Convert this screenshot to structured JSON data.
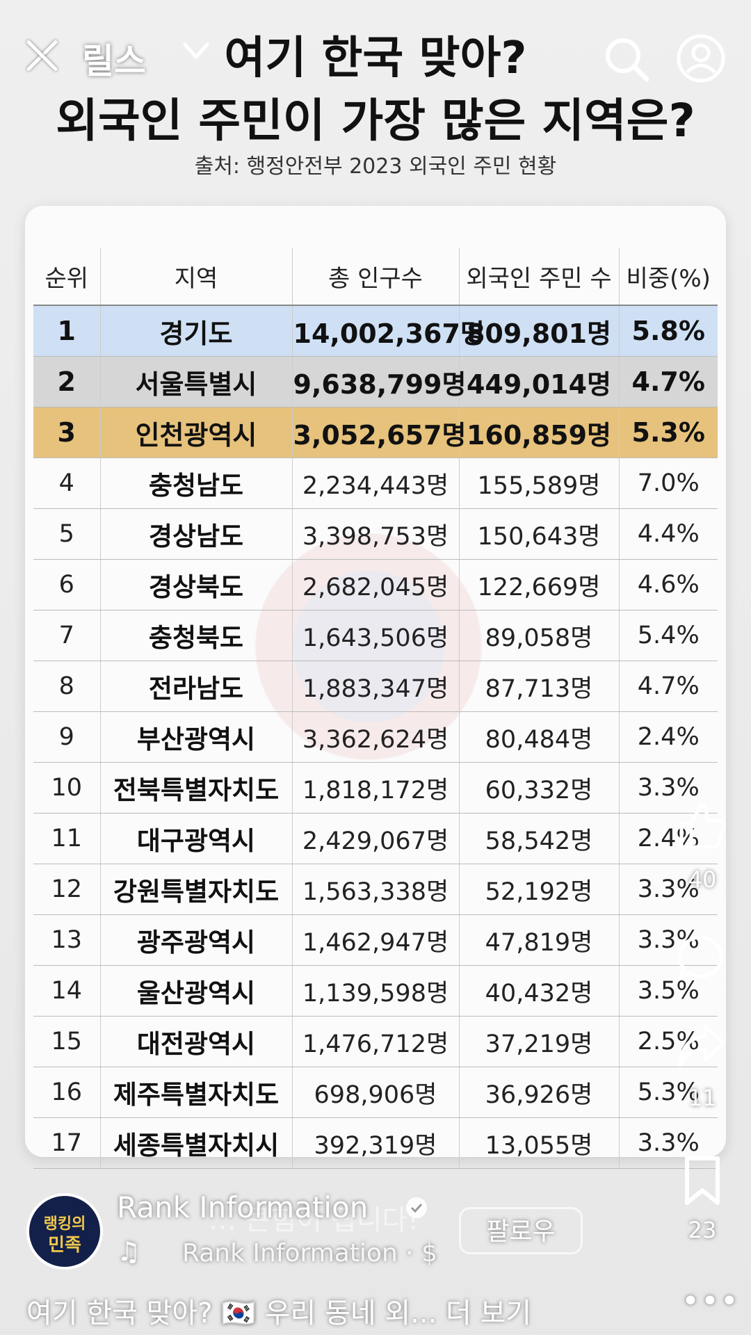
{
  "header": {
    "title_line1": "여기 한국 맞아?",
    "title_line2": "외국인 주민이 가장 많은 지역은?",
    "source": "출처: 행정안전부 2023 외국인 주민 현황"
  },
  "overlay": {
    "reels_label": "릴스",
    "close_icon": "close-icon",
    "dropdown_icon": "chevron-down-icon",
    "search_icon": "search-icon",
    "profile_icon": "profile-icon"
  },
  "table": {
    "headers": [
      "순위",
      "지역",
      "총 인구수",
      "외국인 주민 수",
      "비중(%)"
    ],
    "rows": [
      {
        "rank": "1",
        "region": "경기도",
        "population": "14,002,367명",
        "foreign": "809,801명",
        "ratio": "5.8%"
      },
      {
        "rank": "2",
        "region": "서울특별시",
        "population": "9,638,799명",
        "foreign": "449,014명",
        "ratio": "4.7%"
      },
      {
        "rank": "3",
        "region": "인천광역시",
        "population": "3,052,657명",
        "foreign": "160,859명",
        "ratio": "5.3%"
      },
      {
        "rank": "4",
        "region": "충청남도",
        "population": "2,234,443명",
        "foreign": "155,589명",
        "ratio": "7.0%"
      },
      {
        "rank": "5",
        "region": "경상남도",
        "population": "3,398,753명",
        "foreign": "150,643명",
        "ratio": "4.4%"
      },
      {
        "rank": "6",
        "region": "경상북도",
        "population": "2,682,045명",
        "foreign": "122,669명",
        "ratio": "4.6%"
      },
      {
        "rank": "7",
        "region": "충청북도",
        "population": "1,643,506명",
        "foreign": "89,058명",
        "ratio": "5.4%"
      },
      {
        "rank": "8",
        "region": "전라남도",
        "population": "1,883,347명",
        "foreign": "87,713명",
        "ratio": "4.7%"
      },
      {
        "rank": "9",
        "region": "부산광역시",
        "population": "3,362,624명",
        "foreign": "80,484명",
        "ratio": "2.4%"
      },
      {
        "rank": "10",
        "region": "전북특별자치도",
        "population": "1,818,172명",
        "foreign": "60,332명",
        "ratio": "3.3%"
      },
      {
        "rank": "11",
        "region": "대구광역시",
        "population": "2,429,067명",
        "foreign": "58,542명",
        "ratio": "2.4%"
      },
      {
        "rank": "12",
        "region": "강원특별자치도",
        "population": "1,563,338명",
        "foreign": "52,192명",
        "ratio": "3.3%"
      },
      {
        "rank": "13",
        "region": "광주광역시",
        "population": "1,462,947명",
        "foreign": "47,819명",
        "ratio": "3.3%"
      },
      {
        "rank": "14",
        "region": "울산광역시",
        "population": "1,139,598명",
        "foreign": "40,432명",
        "ratio": "3.5%"
      },
      {
        "rank": "15",
        "region": "대전광역시",
        "population": "1,476,712명",
        "foreign": "37,219명",
        "ratio": "2.5%"
      },
      {
        "rank": "16",
        "region": "제주특별자치도",
        "population": "698,906명",
        "foreign": "36,926명",
        "ratio": "5.3%"
      },
      {
        "rank": "17",
        "region": "세종특별자치시",
        "population": "392,319명",
        "foreign": "13,055명",
        "ratio": "3.3%"
      }
    ]
  },
  "actions": {
    "like_count": "40",
    "share_count": "11",
    "bookmark_count": "23",
    "more_label": "•••"
  },
  "footer": {
    "avatar_line1": "랭킹의",
    "avatar_line2": "민족",
    "account_name": "Rank Information",
    "caption_overlay": "… 큰힘이 됩니다!",
    "music_text": "Rank Information · $",
    "follow_label": "팔로우",
    "caption": "여기 한국 맞아? 🇰🇷 우리 동네 외... 더 보기"
  },
  "colors": {
    "row1": "#cfe0f5",
    "row2": "#d6d6d6",
    "row3": "#e6c27c"
  }
}
